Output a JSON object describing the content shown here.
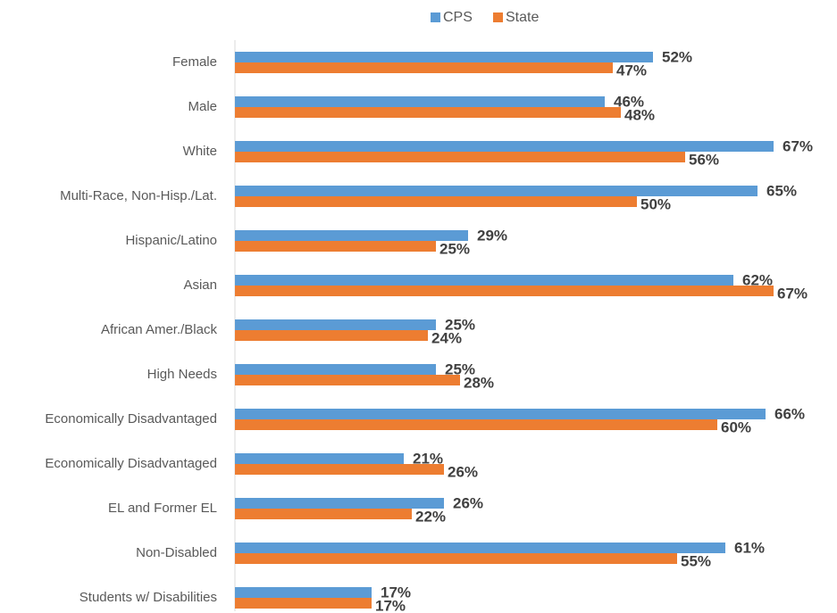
{
  "chart_data": {
    "type": "hbar",
    "categories": [
      "Female",
      "Male",
      "White",
      "Multi-Race, Non-Hisp./Lat.",
      "Hispanic/Latino",
      "Asian",
      "African Amer./Black",
      "High Needs",
      "Economically Disadvantaged",
      "Economically Disadvantaged",
      "EL and Former EL",
      "Non-Disabled",
      "Students w/ Disabilities"
    ],
    "series": [
      {
        "name": "CPS",
        "color": "#5b9bd5",
        "values": [
          52,
          46,
          67,
          65,
          29,
          62,
          25,
          25,
          66,
          21,
          26,
          61,
          17
        ],
        "value_labels": [
          "52%",
          "46%",
          "67%",
          "65%",
          "29%",
          "62%",
          "25%",
          "25%",
          "66%",
          "21%",
          "26%",
          "61%",
          "17%"
        ]
      },
      {
        "name": "State",
        "color": "#ed7d31",
        "values": [
          47,
          48,
          56,
          50,
          25,
          67,
          24,
          28,
          60,
          26,
          22,
          55,
          17
        ],
        "value_labels": [
          "47%",
          "48%",
          "56%",
          "50%",
          "25%",
          "67%",
          "24%",
          "28%",
          "60%",
          "26%",
          "22%",
          "55%",
          "17%"
        ]
      }
    ],
    "xlim": [
      0,
      67
    ]
  }
}
